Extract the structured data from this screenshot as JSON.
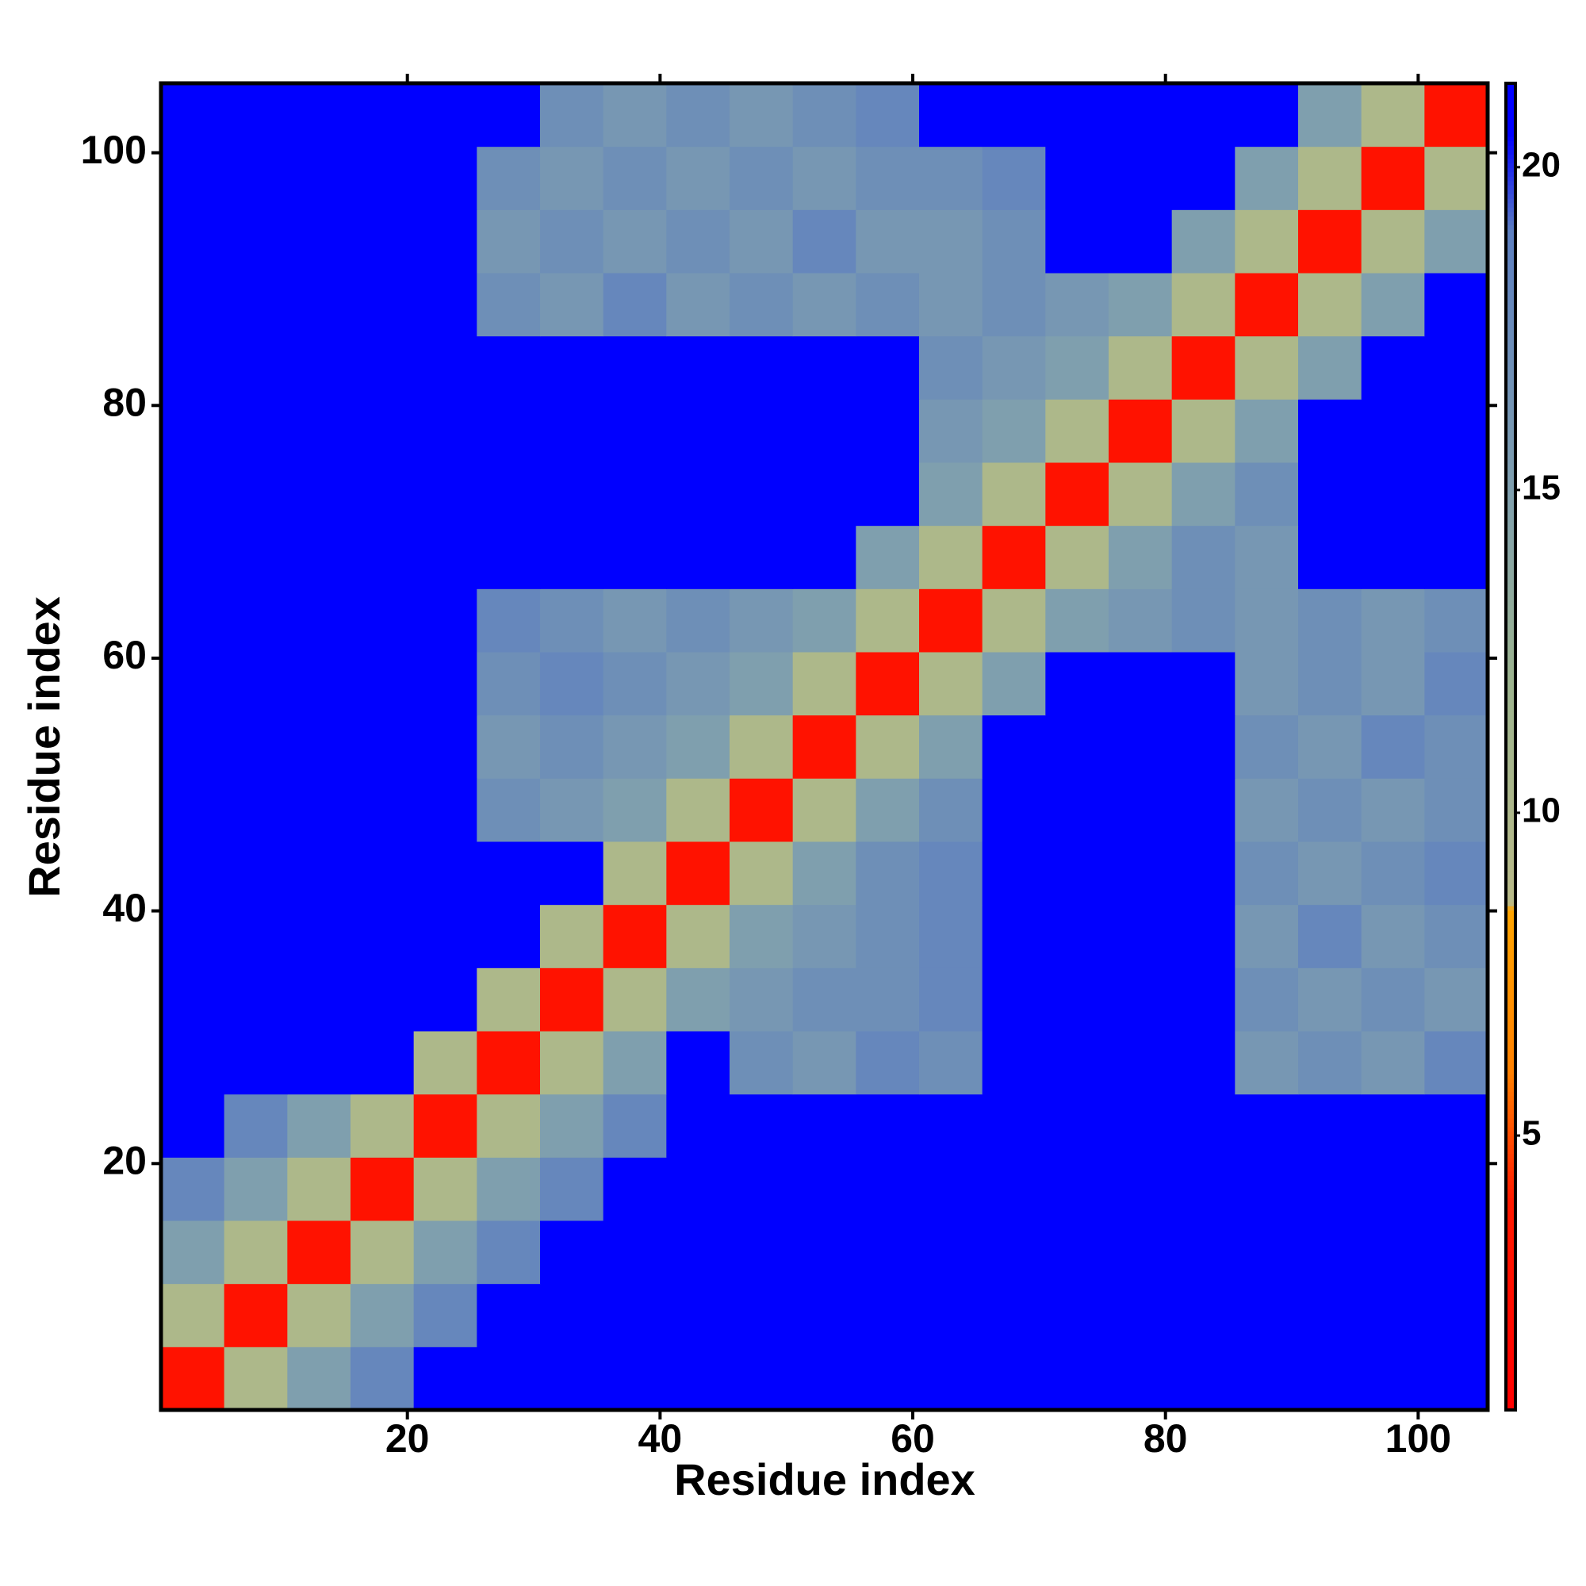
{
  "chart_data": {
    "type": "heatmap",
    "x_label": "Residue index",
    "y_label": "Residue index",
    "x": [
      3,
      8,
      13,
      18,
      23,
      28,
      33,
      38,
      43,
      48,
      53,
      58,
      63,
      68,
      73,
      78,
      83,
      88,
      93,
      98,
      103
    ],
    "y": [
      3,
      8,
      13,
      18,
      23,
      28,
      33,
      38,
      43,
      48,
      53,
      58,
      63,
      68,
      73,
      78,
      83,
      88,
      93,
      98,
      103
    ],
    "xlim": [
      0.5,
      105.5
    ],
    "ylim": [
      0.5,
      105.5
    ],
    "xticks": [
      20,
      40,
      60,
      80,
      100
    ],
    "yticks": [
      20,
      40,
      60,
      80,
      100
    ],
    "values": [
      [
        3,
        10,
        15,
        18,
        21,
        21,
        21,
        21,
        21,
        21,
        21,
        21,
        21,
        21,
        21,
        21,
        21,
        21,
        21,
        21,
        21
      ],
      [
        10,
        3,
        10,
        15,
        18,
        21,
        21,
        21,
        21,
        21,
        21,
        21,
        21,
        21,
        21,
        21,
        21,
        21,
        21,
        21,
        21
      ],
      [
        15,
        10,
        3,
        10,
        15,
        18,
        21,
        21,
        21,
        21,
        21,
        21,
        21,
        21,
        21,
        21,
        21,
        21,
        21,
        21,
        21
      ],
      [
        18,
        15,
        10,
        3,
        10,
        15,
        18,
        21,
        21,
        21,
        21,
        21,
        21,
        21,
        21,
        21,
        21,
        21,
        21,
        21,
        21
      ],
      [
        21,
        18,
        15,
        10,
        3,
        10,
        15,
        18,
        21,
        21,
        21,
        21,
        21,
        21,
        21,
        21,
        21,
        21,
        21,
        21,
        21
      ],
      [
        21,
        21,
        21,
        21,
        10,
        3,
        10,
        15,
        21,
        17,
        16,
        18,
        17,
        21,
        21,
        21,
        21,
        16,
        17,
        16,
        18
      ],
      [
        21,
        21,
        21,
        21,
        21,
        10,
        3,
        10,
        15,
        16,
        17,
        17,
        18,
        21,
        21,
        21,
        21,
        17,
        16,
        17,
        16
      ],
      [
        21,
        21,
        21,
        21,
        21,
        21,
        10,
        3,
        10,
        15,
        16,
        17,
        18,
        21,
        21,
        21,
        21,
        16,
        18,
        16,
        17
      ],
      [
        21,
        21,
        21,
        21,
        21,
        21,
        21,
        10,
        3,
        10,
        15,
        17,
        18,
        21,
        21,
        21,
        21,
        17,
        16,
        17,
        18
      ],
      [
        21,
        21,
        21,
        21,
        21,
        17,
        16,
        15,
        10,
        3,
        10,
        15,
        17,
        21,
        21,
        21,
        21,
        16,
        17,
        16,
        17
      ],
      [
        21,
        21,
        21,
        21,
        21,
        16,
        17,
        16,
        15,
        10,
        3,
        10,
        15,
        21,
        21,
        21,
        21,
        17,
        16,
        18,
        17
      ],
      [
        21,
        21,
        21,
        21,
        21,
        17,
        18,
        17,
        16,
        15,
        10,
        3,
        10,
        15,
        21,
        21,
        21,
        16,
        17,
        16,
        18
      ],
      [
        21,
        21,
        21,
        21,
        21,
        18,
        17,
        16,
        17,
        16,
        15,
        10,
        3,
        10,
        15,
        16,
        17,
        16,
        17,
        16,
        17
      ],
      [
        21,
        21,
        21,
        21,
        21,
        21,
        21,
        21,
        21,
        21,
        21,
        15,
        10,
        3,
        10,
        15,
        17,
        16,
        21,
        21,
        21
      ],
      [
        21,
        21,
        21,
        21,
        21,
        21,
        21,
        21,
        21,
        21,
        21,
        21,
        15,
        10,
        3,
        10,
        15,
        17,
        21,
        21,
        21
      ],
      [
        21,
        21,
        21,
        21,
        21,
        21,
        21,
        21,
        21,
        21,
        21,
        21,
        16,
        15,
        10,
        3,
        10,
        15,
        21,
        21,
        21
      ],
      [
        21,
        21,
        21,
        21,
        21,
        21,
        21,
        21,
        21,
        21,
        21,
        21,
        17,
        16,
        15,
        10,
        3,
        10,
        15,
        21,
        21
      ],
      [
        21,
        21,
        21,
        21,
        21,
        17,
        16,
        18,
        16,
        17,
        16,
        17,
        16,
        17,
        16,
        15,
        10,
        3,
        10,
        15,
        21
      ],
      [
        21,
        21,
        21,
        21,
        21,
        16,
        17,
        16,
        17,
        16,
        18,
        16,
        16,
        17,
        21,
        21,
        15,
        10,
        3,
        10,
        15
      ],
      [
        21,
        21,
        21,
        21,
        21,
        17,
        16,
        17,
        16,
        17,
        16,
        17,
        17,
        18,
        21,
        21,
        21,
        15,
        10,
        3,
        10
      ],
      [
        21,
        21,
        21,
        21,
        21,
        21,
        17,
        16,
        17,
        16,
        17,
        18,
        21,
        21,
        21,
        21,
        21,
        21,
        15,
        10,
        3
      ]
    ],
    "colorscale": [
      {
        "value": 0.75,
        "color": "#ff0000"
      },
      {
        "value": 4,
        "color": "#ff1a00"
      },
      {
        "value": 6,
        "color": "#ff8000"
      },
      {
        "value": 8.5,
        "color": "#ffa500"
      },
      {
        "value": 8.6,
        "color": "#b9ba88"
      },
      {
        "value": 12,
        "color": "#9db48e"
      },
      {
        "value": 15,
        "color": "#7f9fae"
      },
      {
        "value": 19,
        "color": "#5d7fc0"
      },
      {
        "value": 20.5,
        "color": "#0000ff"
      },
      {
        "value": 21.3,
        "color": "#0000ff"
      }
    ],
    "colorbar_lim": [
      0.75,
      21.3
    ],
    "colorbar_ticks": [
      5,
      10,
      15,
      20
    ]
  }
}
